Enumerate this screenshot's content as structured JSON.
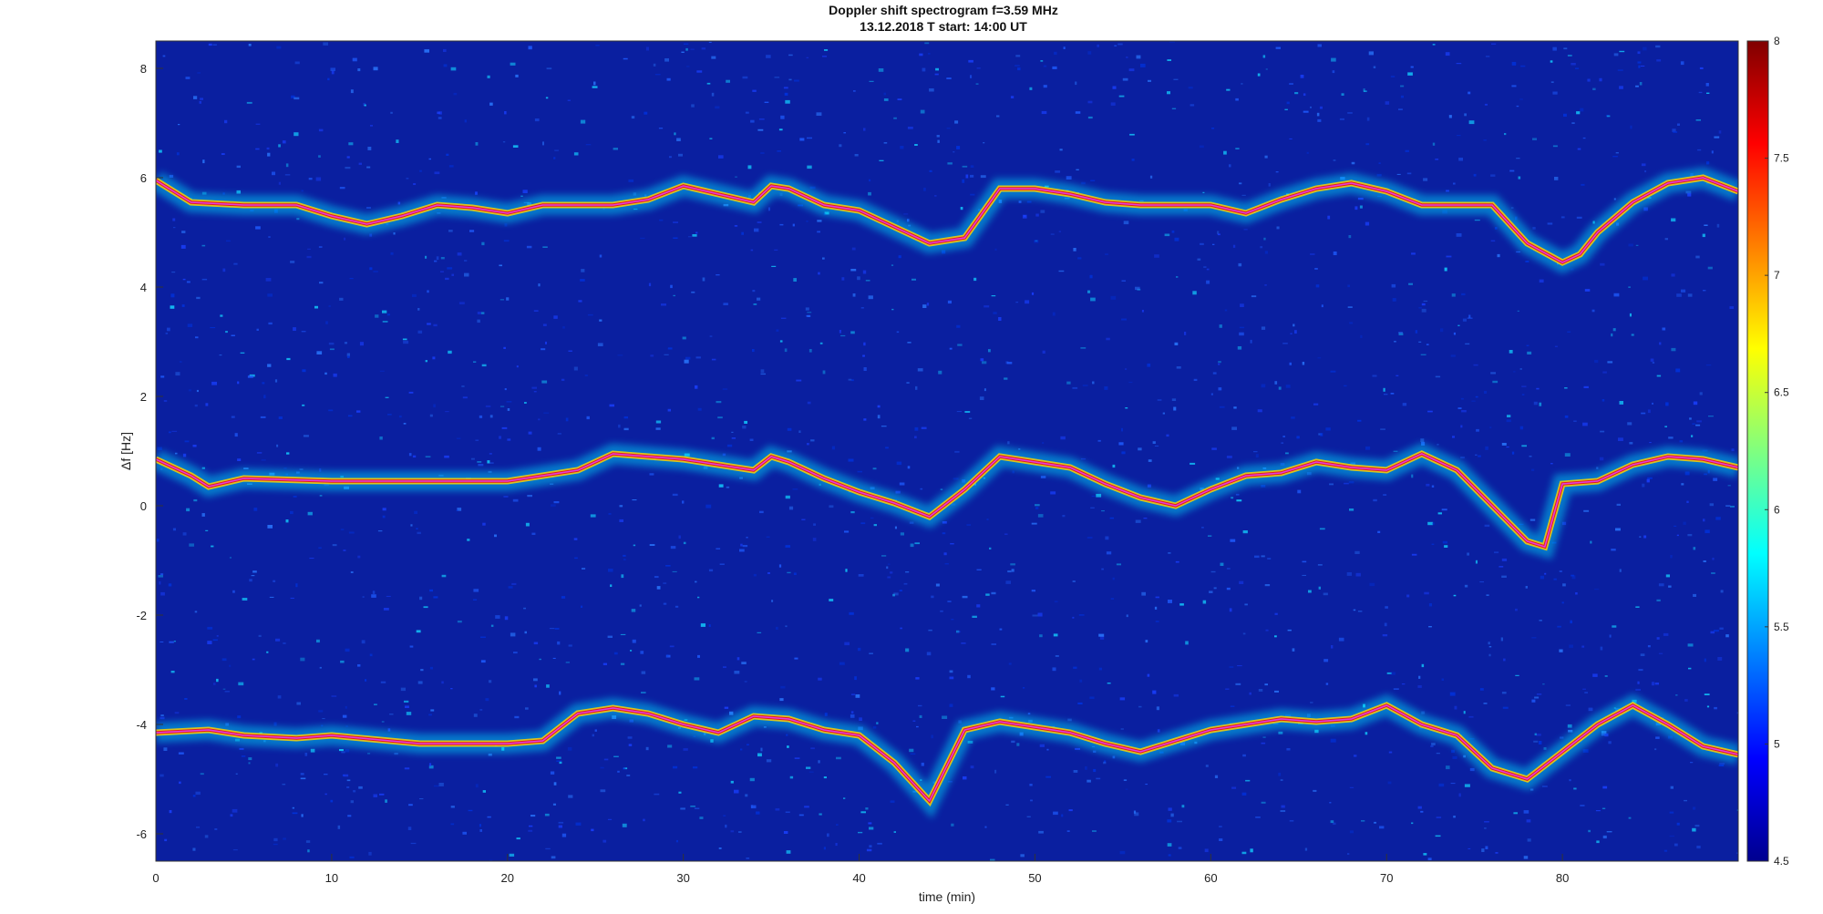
{
  "chart_data": {
    "type": "heatmap",
    "title": "Doppler shift spectrogram f=3.59 MHz",
    "subtitle": "13.12.2018   T start: 14:00 UT",
    "xlabel": "time (min)",
    "ylabel": "Δf [Hz]",
    "xlim": [
      0,
      90
    ],
    "ylim": [
      -6.5,
      8.5
    ],
    "x_ticks": [
      "0",
      "10",
      "20",
      "30",
      "40",
      "50",
      "60",
      "70",
      "80"
    ],
    "y_ticks": [
      "-6",
      "-4",
      "-2",
      "0",
      "2",
      "4",
      "6",
      "8"
    ],
    "colorbar": {
      "range": [
        4.5,
        8
      ],
      "ticks": [
        "4.5",
        "5",
        "5.5",
        "6",
        "6.5",
        "7",
        "7.5",
        "8"
      ],
      "colormap": "jet"
    },
    "grid": false,
    "background_color": "#0a1fa0",
    "trace_color": "#e040e0",
    "series": [
      {
        "x": [
          0,
          2,
          5,
          8,
          10,
          12,
          14,
          16,
          18,
          20,
          22,
          24,
          26,
          28,
          30,
          32,
          34,
          35,
          36,
          38,
          40,
          42,
          44,
          46,
          48,
          50,
          52,
          54,
          56,
          58,
          60,
          62,
          64,
          66,
          68,
          70,
          72,
          74,
          76,
          78,
          80,
          81,
          82,
          84,
          86,
          88,
          90
        ],
        "y": [
          5.95,
          5.55,
          5.5,
          5.5,
          5.3,
          5.15,
          5.3,
          5.5,
          5.45,
          5.35,
          5.5,
          5.5,
          5.5,
          5.6,
          5.85,
          5.7,
          5.55,
          5.85,
          5.8,
          5.5,
          5.4,
          5.1,
          4.8,
          4.9,
          5.8,
          5.8,
          5.7,
          5.55,
          5.5,
          5.5,
          5.5,
          5.35,
          5.6,
          5.8,
          5.9,
          5.75,
          5.5,
          5.5,
          5.5,
          4.8,
          4.45,
          4.6,
          5.0,
          5.55,
          5.9,
          6.0,
          5.75
        ]
      },
      {
        "x": [
          0,
          2,
          3,
          5,
          10,
          15,
          20,
          22,
          24,
          26,
          28,
          30,
          32,
          34,
          35,
          36,
          38,
          40,
          42,
          44,
          46,
          48,
          50,
          52,
          54,
          56,
          58,
          60,
          62,
          64,
          66,
          68,
          70,
          72,
          74,
          76,
          78,
          79,
          80,
          82,
          84,
          86,
          88,
          90
        ],
        "y": [
          0.85,
          0.55,
          0.35,
          0.5,
          0.45,
          0.45,
          0.45,
          0.55,
          0.65,
          0.95,
          0.9,
          0.85,
          0.75,
          0.65,
          0.9,
          0.8,
          0.5,
          0.25,
          0.05,
          -0.2,
          0.3,
          0.9,
          0.8,
          0.7,
          0.4,
          0.15,
          0.0,
          0.3,
          0.55,
          0.6,
          0.8,
          0.7,
          0.65,
          0.95,
          0.65,
          0.0,
          -0.65,
          -0.75,
          0.4,
          0.45,
          0.75,
          0.9,
          0.85,
          0.7
        ]
      },
      {
        "x": [
          0,
          3,
          5,
          8,
          10,
          15,
          20,
          22,
          24,
          26,
          28,
          30,
          32,
          34,
          36,
          38,
          40,
          42,
          44,
          46,
          48,
          50,
          52,
          54,
          56,
          58,
          60,
          62,
          64,
          66,
          68,
          70,
          72,
          74,
          76,
          78,
          80,
          82,
          84,
          86,
          88,
          90
        ],
        "y": [
          -4.15,
          -4.1,
          -4.2,
          -4.25,
          -4.2,
          -4.35,
          -4.35,
          -4.3,
          -3.8,
          -3.7,
          -3.8,
          -4.0,
          -4.15,
          -3.85,
          -3.9,
          -4.1,
          -4.2,
          -4.7,
          -5.4,
          -4.1,
          -3.95,
          -4.05,
          -4.15,
          -4.35,
          -4.5,
          -4.3,
          -4.1,
          -4.0,
          -3.9,
          -3.95,
          -3.9,
          -3.65,
          -4.0,
          -4.2,
          -4.8,
          -5.0,
          -4.5,
          -4.0,
          -3.65,
          -4.0,
          -4.4,
          -4.55
        ]
      }
    ]
  }
}
